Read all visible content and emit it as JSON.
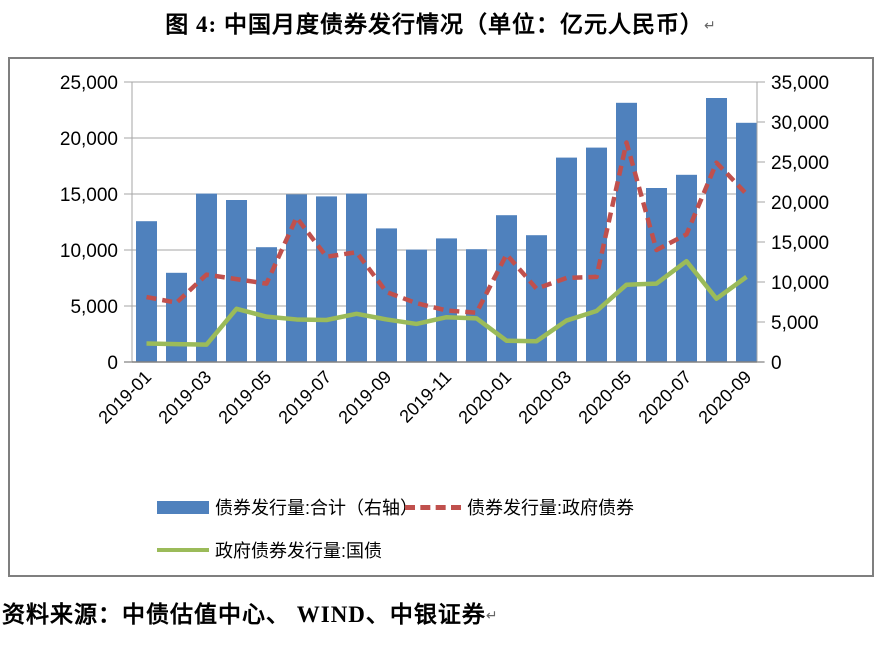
{
  "title": {
    "text": "图 4: 中国月度债券发行情况（单位：亿元人民币）",
    "mark": "↵"
  },
  "source": {
    "text": "资料来源：中债估值中心、 WIND、中银证券",
    "mark": "↵"
  },
  "colors": {
    "bar": "#4F81BD",
    "gov_bond_line": "#C0504D",
    "treasury_line": "#9BBB59",
    "gridline": "#a6a6a6",
    "axis_line": "#808080",
    "chart_border": "#7f7f7f"
  },
  "chart_data": {
    "type": "bar",
    "subtype": "combo-bar-line",
    "title": "图 4: 中国月度债券发行情况（单位：亿元人民币）",
    "categories": [
      "2019-01",
      "2019-02",
      "2019-03",
      "2019-04",
      "2019-05",
      "2019-06",
      "2019-07",
      "2019-08",
      "2019-09",
      "2019-10",
      "2019-11",
      "2019-12",
      "2020-01",
      "2020-02",
      "2020-03",
      "2020-04",
      "2020-05",
      "2020-06",
      "2020-07",
      "2020-08",
      "2020-09"
    ],
    "x_tick_labels": [
      "2019-01",
      "2019-03",
      "2019-05",
      "2019-07",
      "2019-09",
      "2019-11",
      "2020-01",
      "2020-03",
      "2020-05",
      "2020-07",
      "2020-09"
    ],
    "series": [
      {
        "name": "债券发行量:合计（右轴）",
        "type": "bar",
        "axis": "right",
        "color": "#4F81BD",
        "values": [
          17600,
          11150,
          21050,
          20250,
          14350,
          20950,
          20700,
          21050,
          16700,
          14050,
          15450,
          14100,
          18350,
          15850,
          25550,
          26800,
          32400,
          21750,
          23400,
          33000,
          29900
        ]
      },
      {
        "name": "债券发行量:政府债券",
        "type": "line-dashed",
        "axis": "left",
        "color": "#C0504D",
        "values": [
          5800,
          5300,
          7800,
          7400,
          7000,
          12900,
          9400,
          9800,
          6250,
          5250,
          4600,
          4400,
          9600,
          6550,
          7500,
          7600,
          19600,
          10000,
          11400,
          17800,
          15000
        ]
      },
      {
        "name": "政府债券发行量:国债",
        "type": "line",
        "axis": "left",
        "color": "#9BBB59",
        "values": [
          1650,
          1600,
          1550,
          4750,
          4050,
          3800,
          3750,
          4300,
          3800,
          3400,
          4000,
          3900,
          1900,
          1850,
          3700,
          4550,
          6900,
          7000,
          9000,
          5650,
          7600
        ]
      }
    ],
    "left_axis": {
      "min": 0,
      "max": 25000,
      "step": 5000,
      "tick_labels": [
        "0",
        "5,000",
        "10,000",
        "15,000",
        "20,000",
        "25,000"
      ]
    },
    "right_axis": {
      "min": 0,
      "max": 35000,
      "step": 5000,
      "tick_labels": [
        "0",
        "5,000",
        "10,000",
        "15,000",
        "20,000",
        "25,000",
        "30,000",
        "35,000"
      ]
    },
    "grid": true,
    "legend_position": "bottom-inside"
  }
}
